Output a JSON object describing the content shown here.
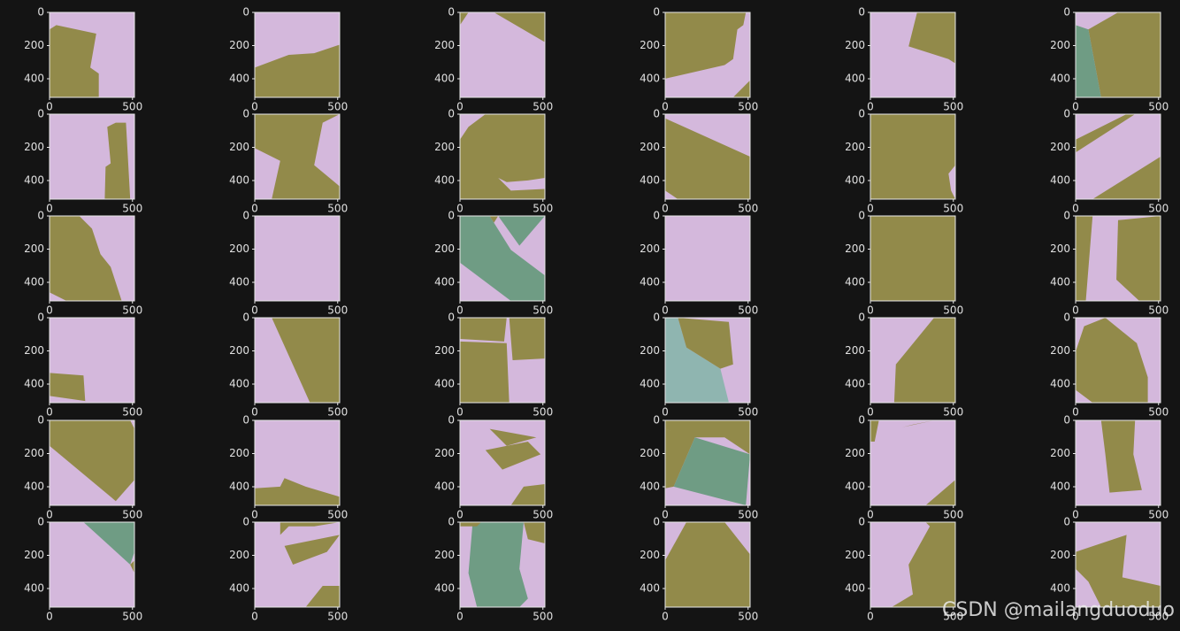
{
  "chart_data": [
    {
      "type": "image",
      "xlim": [
        0,
        512
      ],
      "ylim": [
        512,
        0
      ],
      "xticks": [
        0,
        500
      ],
      "yticks": [
        0,
        200,
        400
      ]
    },
    {
      "type": "image",
      "xlim": [
        0,
        512
      ],
      "ylim": [
        512,
        0
      ],
      "xticks": [
        0,
        500
      ],
      "yticks": [
        0,
        200,
        400
      ]
    },
    {
      "type": "image",
      "xlim": [
        0,
        512
      ],
      "ylim": [
        512,
        0
      ],
      "xticks": [
        0,
        500
      ],
      "yticks": [
        0,
        200,
        400
      ]
    },
    {
      "type": "image",
      "xlim": [
        0,
        512
      ],
      "ylim": [
        512,
        0
      ],
      "xticks": [
        0,
        500
      ],
      "yticks": [
        0,
        200,
        400
      ]
    },
    {
      "type": "image",
      "xlim": [
        0,
        512
      ],
      "ylim": [
        512,
        0
      ],
      "xticks": [
        0,
        500
      ],
      "yticks": [
        0,
        200,
        400
      ]
    },
    {
      "type": "image",
      "xlim": [
        0,
        512
      ],
      "ylim": [
        512,
        0
      ],
      "xticks": [
        0,
        500
      ],
      "yticks": [
        0,
        200,
        400
      ]
    },
    {
      "type": "image",
      "xlim": [
        0,
        512
      ],
      "ylim": [
        512,
        0
      ],
      "xticks": [
        0,
        500
      ],
      "yticks": [
        0,
        200,
        400
      ]
    },
    {
      "type": "image",
      "xlim": [
        0,
        512
      ],
      "ylim": [
        512,
        0
      ],
      "xticks": [
        0,
        500
      ],
      "yticks": [
        0,
        200,
        400
      ]
    },
    {
      "type": "image",
      "xlim": [
        0,
        512
      ],
      "ylim": [
        512,
        0
      ],
      "xticks": [
        0,
        500
      ],
      "yticks": [
        0,
        200,
        400
      ]
    },
    {
      "type": "image",
      "xlim": [
        0,
        512
      ],
      "ylim": [
        512,
        0
      ],
      "xticks": [
        0,
        500
      ],
      "yticks": [
        0,
        200,
        400
      ]
    },
    {
      "type": "image",
      "xlim": [
        0,
        512
      ],
      "ylim": [
        512,
        0
      ],
      "xticks": [
        0,
        500
      ],
      "yticks": [
        0,
        200,
        400
      ]
    },
    {
      "type": "image",
      "xlim": [
        0,
        512
      ],
      "ylim": [
        512,
        0
      ],
      "xticks": [
        0,
        500
      ],
      "yticks": [
        0,
        200,
        400
      ]
    },
    {
      "type": "image",
      "xlim": [
        0,
        512
      ],
      "ylim": [
        512,
        0
      ],
      "xticks": [
        0,
        500
      ],
      "yticks": [
        0,
        200,
        400
      ]
    },
    {
      "type": "image",
      "xlim": [
        0,
        512
      ],
      "ylim": [
        512,
        0
      ],
      "xticks": [
        0,
        500
      ],
      "yticks": [
        0,
        200,
        400
      ]
    },
    {
      "type": "image",
      "xlim": [
        0,
        512
      ],
      "ylim": [
        512,
        0
      ],
      "xticks": [
        0,
        500
      ],
      "yticks": [
        0,
        200,
        400
      ]
    },
    {
      "type": "image",
      "xlim": [
        0,
        512
      ],
      "ylim": [
        512,
        0
      ],
      "xticks": [
        0,
        500
      ],
      "yticks": [
        0,
        200,
        400
      ]
    },
    {
      "type": "image",
      "xlim": [
        0,
        512
      ],
      "ylim": [
        512,
        0
      ],
      "xticks": [
        0,
        500
      ],
      "yticks": [
        0,
        200,
        400
      ]
    },
    {
      "type": "image",
      "xlim": [
        0,
        512
      ],
      "ylim": [
        512,
        0
      ],
      "xticks": [
        0,
        500
      ],
      "yticks": [
        0,
        200,
        400
      ]
    },
    {
      "type": "image",
      "xlim": [
        0,
        512
      ],
      "ylim": [
        512,
        0
      ],
      "xticks": [
        0,
        500
      ],
      "yticks": [
        0,
        200,
        400
      ]
    },
    {
      "type": "image",
      "xlim": [
        0,
        512
      ],
      "ylim": [
        512,
        0
      ],
      "xticks": [
        0,
        500
      ],
      "yticks": [
        0,
        200,
        400
      ]
    },
    {
      "type": "image",
      "xlim": [
        0,
        512
      ],
      "ylim": [
        512,
        0
      ],
      "xticks": [
        0,
        500
      ],
      "yticks": [
        0,
        200,
        400
      ]
    },
    {
      "type": "image",
      "xlim": [
        0,
        512
      ],
      "ylim": [
        512,
        0
      ],
      "xticks": [
        0,
        500
      ],
      "yticks": [
        0,
        200,
        400
      ]
    },
    {
      "type": "image",
      "xlim": [
        0,
        512
      ],
      "ylim": [
        512,
        0
      ],
      "xticks": [
        0,
        500
      ],
      "yticks": [
        0,
        200,
        400
      ]
    },
    {
      "type": "image",
      "xlim": [
        0,
        512
      ],
      "ylim": [
        512,
        0
      ],
      "xticks": [
        0,
        500
      ],
      "yticks": [
        0,
        200,
        400
      ]
    },
    {
      "type": "image",
      "xlim": [
        0,
        512
      ],
      "ylim": [
        512,
        0
      ],
      "xticks": [
        0,
        500
      ],
      "yticks": [
        0,
        200,
        400
      ]
    },
    {
      "type": "image",
      "xlim": [
        0,
        512
      ],
      "ylim": [
        512,
        0
      ],
      "xticks": [
        0,
        500
      ],
      "yticks": [
        0,
        200,
        400
      ]
    },
    {
      "type": "image",
      "xlim": [
        0,
        512
      ],
      "ylim": [
        512,
        0
      ],
      "xticks": [
        0,
        500
      ],
      "yticks": [
        0,
        200,
        400
      ]
    },
    {
      "type": "image",
      "xlim": [
        0,
        512
      ],
      "ylim": [
        512,
        0
      ],
      "xticks": [
        0,
        500
      ],
      "yticks": [
        0,
        200,
        400
      ]
    },
    {
      "type": "image",
      "xlim": [
        0,
        512
      ],
      "ylim": [
        512,
        0
      ],
      "xticks": [
        0,
        500
      ],
      "yticks": [
        0,
        200,
        400
      ]
    },
    {
      "type": "image",
      "xlim": [
        0,
        512
      ],
      "ylim": [
        512,
        0
      ],
      "xticks": [
        0,
        500
      ],
      "yticks": [
        0,
        200,
        400
      ]
    },
    {
      "type": "image",
      "xlim": [
        0,
        512
      ],
      "ylim": [
        512,
        0
      ],
      "xticks": [
        0,
        500
      ],
      "yticks": [
        0,
        200,
        400
      ]
    },
    {
      "type": "image",
      "xlim": [
        0,
        512
      ],
      "ylim": [
        512,
        0
      ],
      "xticks": [
        0,
        500
      ],
      "yticks": [
        0,
        200,
        400
      ]
    },
    {
      "type": "image",
      "xlim": [
        0,
        512
      ],
      "ylim": [
        512,
        0
      ],
      "xticks": [
        0,
        500
      ],
      "yticks": [
        0,
        200,
        400
      ]
    },
    {
      "type": "image",
      "xlim": [
        0,
        512
      ],
      "ylim": [
        512,
        0
      ],
      "xticks": [
        0,
        500
      ],
      "yticks": [
        0,
        200,
        400
      ]
    },
    {
      "type": "image",
      "xlim": [
        0,
        512
      ],
      "ylim": [
        512,
        0
      ],
      "xticks": [
        0,
        500
      ],
      "yticks": [
        0,
        200,
        400
      ]
    },
    {
      "type": "image",
      "xlim": [
        0,
        512
      ],
      "ylim": [
        512,
        0
      ],
      "xticks": [
        0,
        500
      ],
      "yticks": [
        0,
        200,
        400
      ]
    }
  ],
  "watermark": "CSDN @mailangduoduo"
}
